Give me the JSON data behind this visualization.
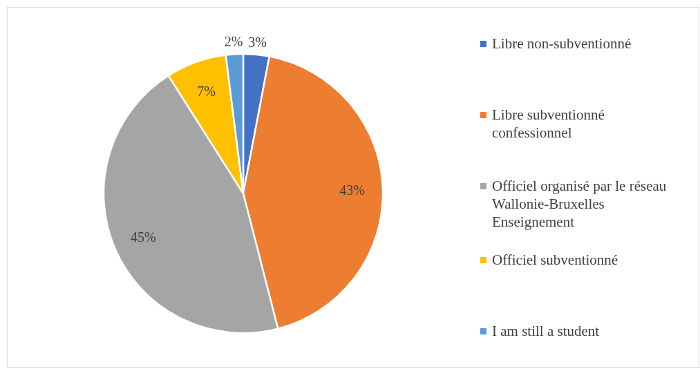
{
  "chart_data": {
    "type": "pie",
    "categories": [
      "Libre non-subventionné",
      "Libre subventionné confessionnel",
      "Officiel organisé par le réseau Wallonie-Bruxelles Enseignement",
      "Officiel subventionné",
      "I am still a student"
    ],
    "values": [
      3,
      43,
      45,
      7,
      2
    ],
    "colors": [
      "#4472c4",
      "#ed7d31",
      "#a5a5a5",
      "#ffc000",
      "#5b9bd5"
    ],
    "value_labels": [
      "3%",
      "43%",
      "45%",
      "7%",
      "2%"
    ],
    "legend": "right"
  }
}
